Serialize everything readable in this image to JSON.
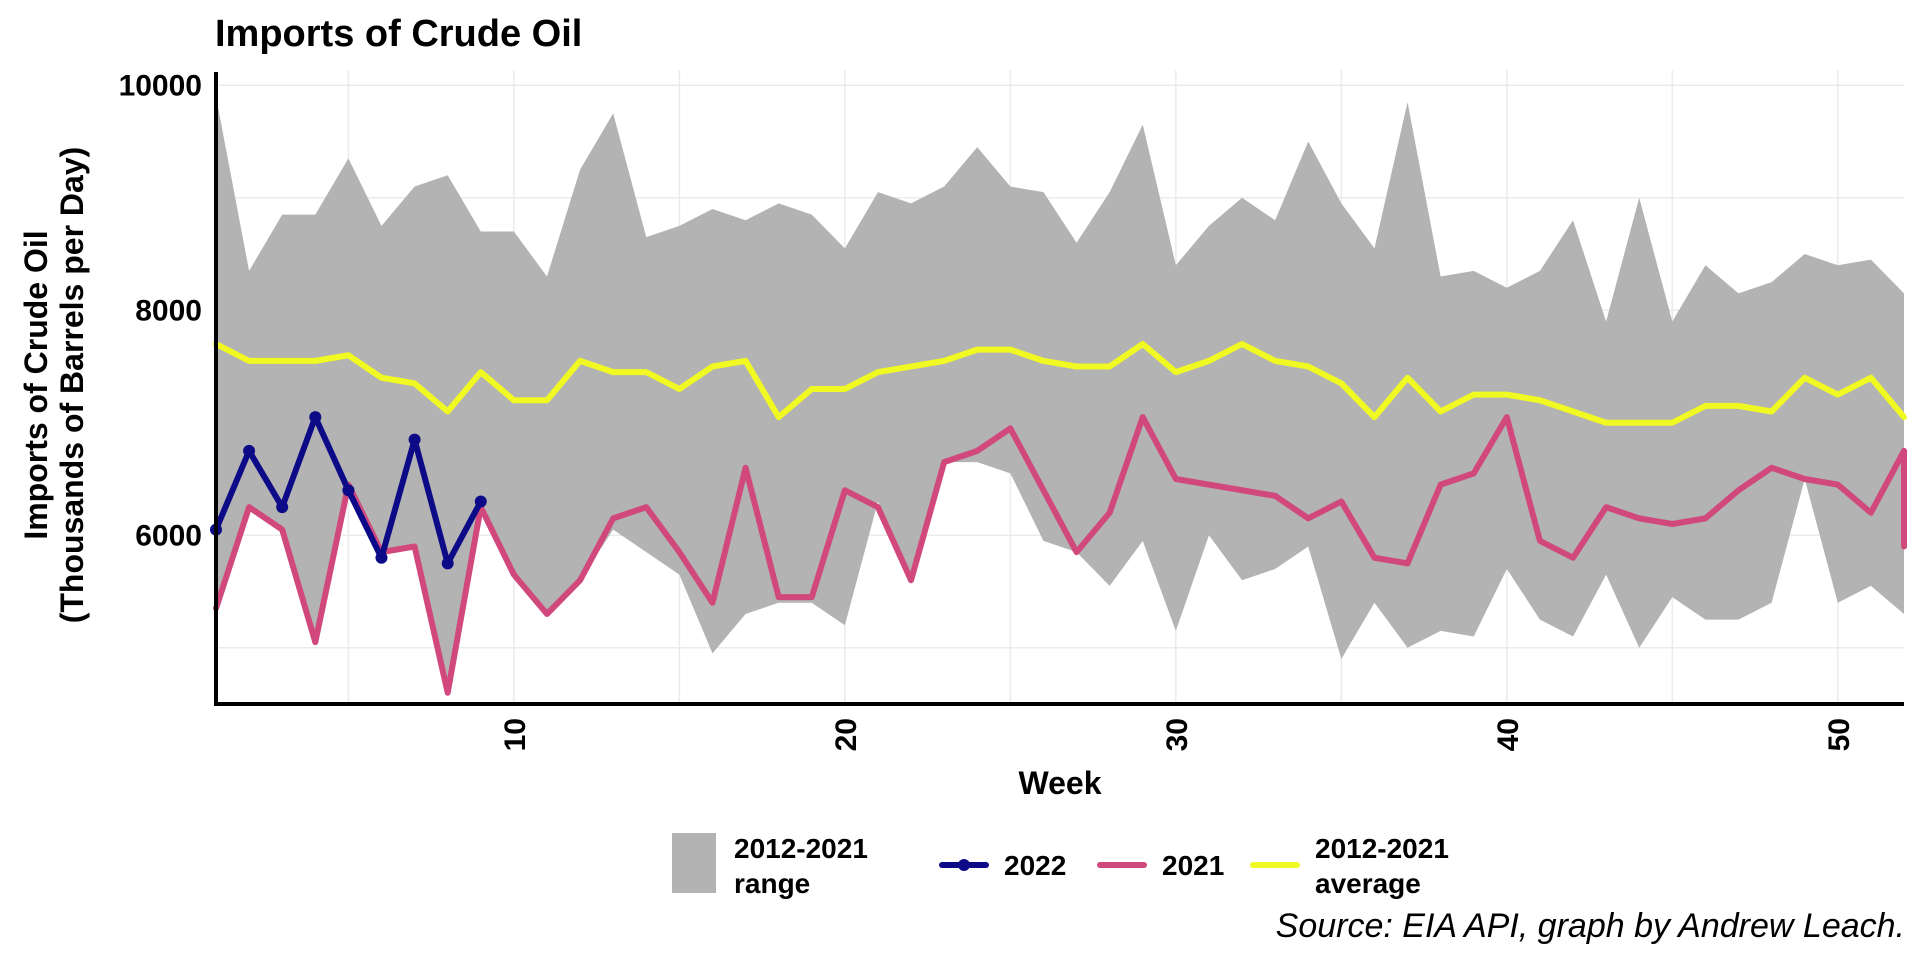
{
  "chart_data": {
    "type": "line",
    "title": "Imports of Crude Oil",
    "xlabel": "Week",
    "ylabel": [
      "Imports of Crude Oil",
      "(Thousands of Barrels per Day)"
    ],
    "xlim": [
      1,
      52
    ],
    "ylim": [
      4500,
      10100
    ],
    "x_ticks": [
      10,
      20,
      30,
      40,
      50
    ],
    "y_ticks": [
      6000,
      8000,
      10000
    ],
    "grid": true,
    "legend_position": "bottom",
    "caption": "Source: EIA API, graph by Andrew Leach.",
    "colors": {
      "range": "#b3b3b3",
      "y2022": "#0d0a87",
      "y2021": "#d1497c",
      "average": "#f0f921",
      "grid": "#ebebeb"
    },
    "range": {
      "name": "2012-2021 range",
      "weeks": [
        1,
        2,
        3,
        4,
        5,
        6,
        7,
        8,
        9,
        10,
        11,
        12,
        13,
        14,
        15,
        16,
        17,
        18,
        19,
        20,
        21,
        22,
        23,
        24,
        25,
        26,
        27,
        28,
        29,
        30,
        31,
        32,
        33,
        34,
        35,
        36,
        37,
        38,
        39,
        40,
        41,
        42,
        43,
        44,
        45,
        46,
        47,
        48,
        49,
        50,
        51,
        52
      ],
      "min": [
        5400,
        6250,
        6050,
        5050,
        6450,
        5850,
        5900,
        4600,
        6200,
        5650,
        5300,
        5600,
        6050,
        5850,
        5650,
        4950,
        5300,
        5400,
        5400,
        5200,
        6300,
        5600,
        6650,
        6650,
        6550,
        5950,
        5850,
        5550,
        5950,
        5150,
        6000,
        5600,
        5700,
        5900,
        4900,
        5400,
        5000,
        5150,
        5100,
        5700,
        5250,
        5100,
        5650,
        5000,
        5450,
        5250,
        5250,
        5400,
        6500,
        5400,
        5550,
        5300
      ],
      "max": [
        9900,
        8350,
        8850,
        8850,
        9350,
        8750,
        9100,
        9200,
        8700,
        8700,
        8300,
        9250,
        9750,
        8650,
        8750,
        8900,
        8800,
        8950,
        8850,
        8550,
        9050,
        8950,
        9100,
        9450,
        9100,
        9050,
        8600,
        9050,
        9650,
        8400,
        8750,
        9000,
        8800,
        9500,
        8950,
        8550,
        9850,
        8300,
        8350,
        8200,
        8350,
        8800,
        7900,
        9000,
        7900,
        8400,
        8150,
        8250,
        8500,
        8400,
        8450,
        8150
      ]
    },
    "series": [
      {
        "name": "2022",
        "x": [
          1,
          2,
          3,
          4,
          5,
          6,
          7,
          8,
          9
        ],
        "values": [
          6050,
          6750,
          6250,
          7050,
          6400,
          5800,
          6850,
          5750,
          6300
        ]
      },
      {
        "name": "2021",
        "x": [
          1,
          2,
          3,
          4,
          5,
          6,
          7,
          8,
          9,
          10,
          11,
          12,
          13,
          14,
          15,
          16,
          17,
          18,
          19,
          20,
          21,
          22,
          23,
          24,
          25,
          26,
          27,
          28,
          29,
          30,
          31,
          32,
          33,
          34,
          35,
          36,
          37,
          38,
          39,
          40,
          41,
          42,
          43,
          44,
          45,
          46,
          47,
          48,
          49,
          50,
          51,
          52,
          52
        ],
        "values": [
          5350,
          6250,
          6050,
          5050,
          6450,
          5850,
          5900,
          4600,
          6250,
          5650,
          5300,
          5600,
          6150,
          6250,
          5850,
          5400,
          6600,
          5450,
          5450,
          6400,
          6250,
          5600,
          6650,
          6750,
          6950,
          6400,
          5850,
          6200,
          7050,
          6500,
          6450,
          6400,
          6350,
          6150,
          6300,
          5800,
          5750,
          6450,
          6550,
          7050,
          5950,
          5800,
          6250,
          6150,
          6100,
          6150,
          6400,
          6600,
          6500,
          6450,
          6200,
          6750,
          5900
        ]
      },
      {
        "name": "2012-2021 average",
        "x": [
          1,
          2,
          3,
          4,
          5,
          6,
          7,
          8,
          9,
          10,
          11,
          12,
          13,
          14,
          15,
          16,
          17,
          18,
          19,
          20,
          21,
          22,
          23,
          24,
          25,
          26,
          27,
          28,
          29,
          30,
          31,
          32,
          33,
          34,
          35,
          36,
          37,
          38,
          39,
          40,
          41,
          42,
          43,
          44,
          45,
          46,
          47,
          48,
          49,
          50,
          51,
          52
        ],
        "values": [
          7700,
          7550,
          7550,
          7550,
          7600,
          7400,
          7350,
          7100,
          7450,
          7200,
          7200,
          7550,
          7450,
          7450,
          7300,
          7500,
          7550,
          7050,
          7300,
          7300,
          7450,
          7500,
          7550,
          7650,
          7650,
          7550,
          7500,
          7500,
          7700,
          7450,
          7550,
          7700,
          7550,
          7500,
          7350,
          7050,
          7400,
          7100,
          7250,
          7250,
          7200,
          7100,
          7000,
          7000,
          7000,
          7150,
          7150,
          7100,
          7400,
          7250,
          7400,
          7050
        ]
      }
    ],
    "legend": [
      {
        "key": "range",
        "label_line1": "2012-2021",
        "label_line2": "range"
      },
      {
        "key": "y2022",
        "label_line1": "2022",
        "label_line2": ""
      },
      {
        "key": "y2021",
        "label_line1": "2021",
        "label_line2": ""
      },
      {
        "key": "average",
        "label_line1": "2012-2021",
        "label_line2": "average"
      }
    ]
  }
}
